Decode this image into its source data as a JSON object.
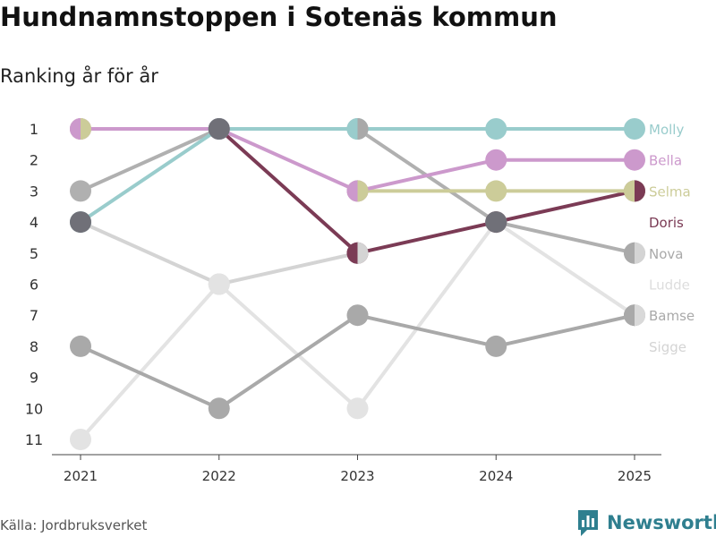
{
  "chart_data": {
    "type": "line",
    "title": "Hundnamnstoppen i Sotenäs kommun",
    "subtitle": "Ranking år för år",
    "x": [
      "2021",
      "2022",
      "2023",
      "2024",
      "2025"
    ],
    "y_ticks": [
      "1",
      "2",
      "3",
      "4",
      "5",
      "6",
      "7",
      "8",
      "9",
      "10",
      "11"
    ],
    "y_range": [
      1,
      11
    ],
    "y_reversed": true,
    "xlabel": "",
    "ylabel": "",
    "grid": false,
    "series": [
      {
        "name": "Sigge",
        "color": "#d4d4d4",
        "ranks": [
          4,
          6,
          5,
          null,
          null
        ]
      },
      {
        "name": "Ludde",
        "color": "#e3e3e3",
        "ranks": [
          11,
          6,
          10,
          4,
          7
        ]
      },
      {
        "name": "Bamse",
        "color": "#a9a9a9",
        "ranks": [
          8,
          10,
          7,
          8,
          7
        ]
      },
      {
        "name": "Nova",
        "color": "#b0b0b0",
        "ranks": [
          3,
          1,
          1,
          4,
          5
        ]
      },
      {
        "name": "Doris",
        "color": "#7b3b55",
        "ranks": [
          null,
          1,
          5,
          4,
          3
        ]
      },
      {
        "name": "Selma",
        "color": "#cccc99",
        "ranks": [
          1,
          null,
          3,
          3,
          3
        ]
      },
      {
        "name": "Bella",
        "color": "#cc99cc",
        "ranks": [
          1,
          1,
          3,
          2,
          2
        ]
      },
      {
        "name": "Molly",
        "color": "#99cccc",
        "ranks": [
          4,
          1,
          1,
          1,
          1
        ]
      }
    ],
    "legend": [
      {
        "name": "Molly",
        "rank": 1,
        "color": "#99cccc"
      },
      {
        "name": "Bella",
        "rank": 2,
        "color": "#cc99cc"
      },
      {
        "name": "Selma",
        "rank": 3,
        "color": "#cccc99"
      },
      {
        "name": "Doris",
        "rank": 4,
        "color": "#7b3b55"
      },
      {
        "name": "Nova",
        "rank": 5,
        "color": "#a9a9a9"
      },
      {
        "name": "Ludde",
        "rank": 6,
        "color": "#dddddd"
      },
      {
        "name": "Bamse",
        "rank": 7,
        "color": "#a9a9a9"
      },
      {
        "name": "Sigge",
        "rank": 8,
        "color": "#d4d4d4"
      }
    ],
    "merged_markers": [
      {
        "x": "2021",
        "rank": 4,
        "color": "#707078"
      },
      {
        "x": "2022",
        "rank": 1,
        "color": "#707078"
      },
      {
        "x": "2024",
        "rank": 4,
        "color": "#707078"
      }
    ],
    "split_markers": [
      {
        "x": "2021",
        "rank": 1,
        "left": "#cc99cc",
        "right": "#cccc99"
      },
      {
        "x": "2023",
        "rank": 1,
        "left": "#99cccc",
        "right": "#a9a9a9"
      },
      {
        "x": "2023",
        "rank": 3,
        "left": "#cc99cc",
        "right": "#cccc99"
      },
      {
        "x": "2023",
        "rank": 5,
        "left": "#7b3b55",
        "right": "#d4d4d4"
      },
      {
        "x": "2025",
        "rank": 3,
        "left": "#cccc99",
        "right": "#7b3b55"
      },
      {
        "x": "2025",
        "rank": 5,
        "left": "#a9a9a9",
        "right": "#d4d4d4"
      },
      {
        "x": "2025",
        "rank": 7,
        "left": "#a9a9a9",
        "right": "#d9d9d9"
      }
    ]
  },
  "footer": {
    "source": "Källa: Jordbruksverket",
    "brand": "Newsworthy"
  },
  "colors": {
    "axis": "#444444",
    "brand": "#2f7f8f"
  }
}
